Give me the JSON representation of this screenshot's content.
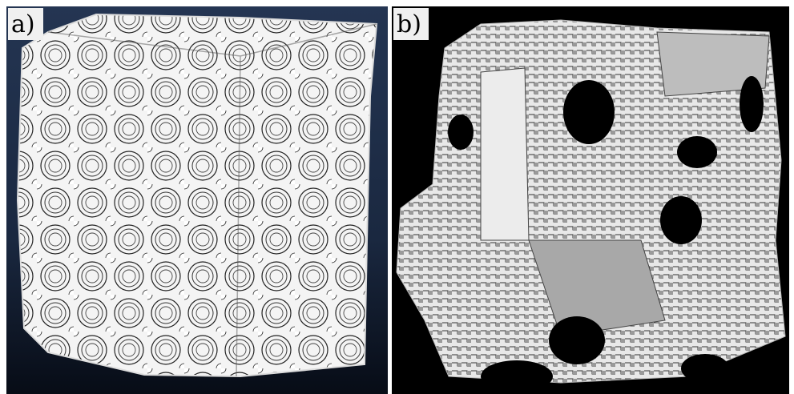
{
  "panels": [
    {
      "label": "a)"
    },
    {
      "label": "b)"
    }
  ]
}
